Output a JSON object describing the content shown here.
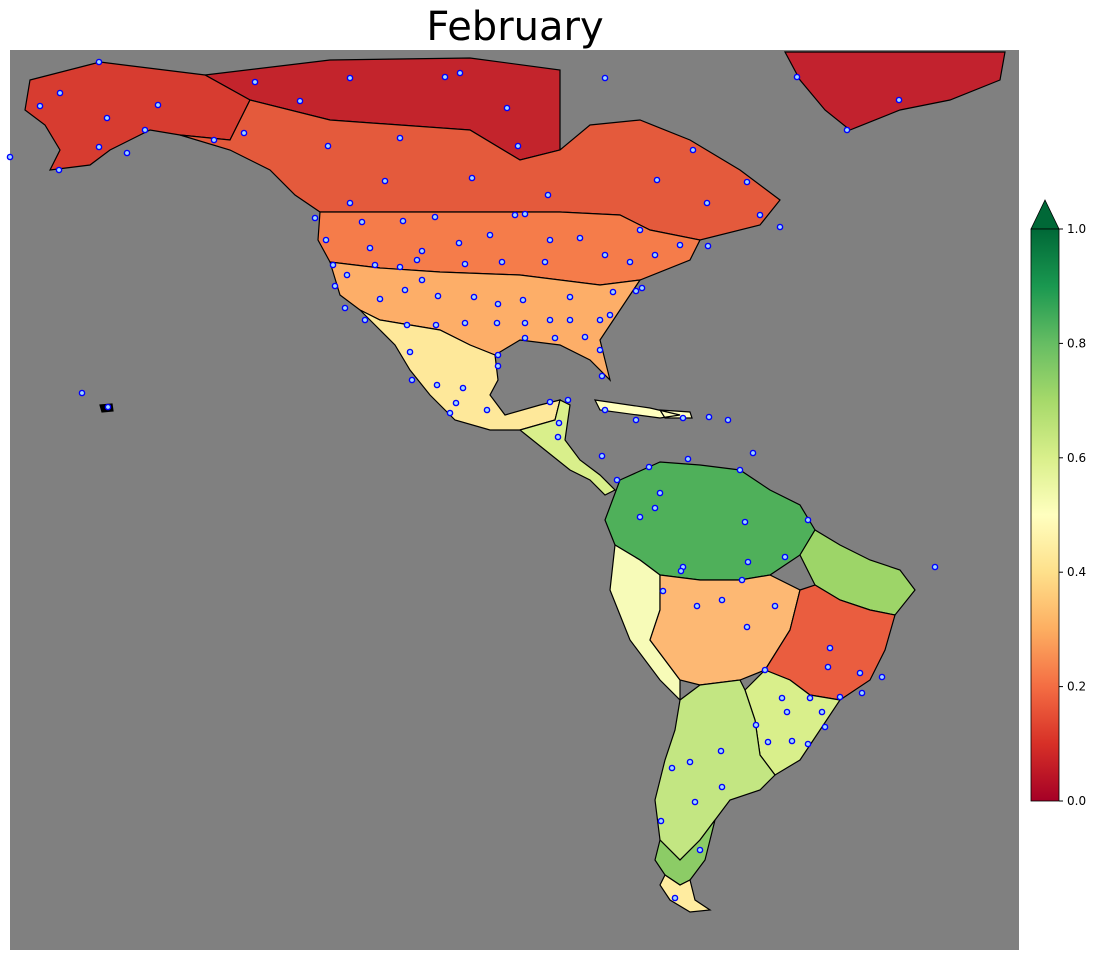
{
  "title": "February",
  "colorbar": {
    "colormap": "RdYlGn",
    "ticks": [
      "0.0",
      "0.2",
      "0.4",
      "0.6",
      "0.8",
      "1.0"
    ],
    "range": [
      0.0,
      1.0
    ],
    "extend": "max"
  },
  "colors": {
    "ocean": "#808080",
    "station_marker_edge": "#0000ff",
    "station_marker_face": "#a0d8ff",
    "borders": "#000000"
  },
  "regions": [
    {
      "name": "alaska",
      "value": 0.1
    },
    {
      "name": "northern-canada",
      "value": 0.05
    },
    {
      "name": "southern-canada",
      "value": 0.15
    },
    {
      "name": "greenland",
      "value": 0.03
    },
    {
      "name": "northern-usa",
      "value": 0.25
    },
    {
      "name": "southern-usa",
      "value": 0.35
    },
    {
      "name": "mexico",
      "value": 0.45
    },
    {
      "name": "central-america",
      "value": 0.6
    },
    {
      "name": "caribbean",
      "value": 0.55
    },
    {
      "name": "amazon",
      "value": 0.8
    },
    {
      "name": "northeast-brazil",
      "value": 0.7
    },
    {
      "name": "peru-coast",
      "value": 0.5
    },
    {
      "name": "bolivia-paraguay",
      "value": 0.3
    },
    {
      "name": "central-brazil",
      "value": 0.2
    },
    {
      "name": "southern-brazil",
      "value": 0.6
    },
    {
      "name": "argentina",
      "value": 0.65
    },
    {
      "name": "patagonia",
      "value": 0.75
    },
    {
      "name": "tierra-del-fuego",
      "value": 0.45
    }
  ]
}
